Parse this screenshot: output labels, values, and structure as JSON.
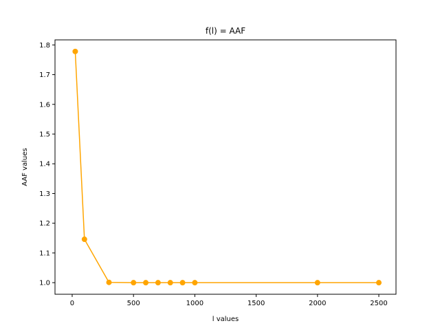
{
  "chart_data": {
    "type": "line",
    "title": "f(l) = AAF",
    "xlabel": "l values",
    "ylabel": "AAF values",
    "xlim": [
      -140,
      2640
    ],
    "ylim": [
      0.961,
      1.817
    ],
    "xticks": [
      0,
      500,
      1000,
      1500,
      2000,
      2500
    ],
    "yticks": [
      1.0,
      1.1,
      1.2,
      1.3,
      1.4,
      1.5,
      1.6,
      1.7,
      1.8
    ],
    "xtick_labels": [
      "0",
      "500",
      "1000",
      "1500",
      "2000",
      "2500"
    ],
    "ytick_labels": [
      "1.0",
      "1.1",
      "1.2",
      "1.3",
      "1.4",
      "1.5",
      "1.6",
      "1.7",
      "1.8"
    ],
    "grid": false,
    "series": [
      {
        "color": "#ffa500",
        "marker": "circle",
        "x": [
          25,
          100,
          300,
          500,
          600,
          700,
          800,
          900,
          1000,
          2000,
          2500
        ],
        "y": [
          1.778,
          1.146,
          1.001,
          1.0,
          1.0,
          1.0,
          1.0,
          1.0,
          1.0,
          1.0,
          1.0
        ]
      }
    ]
  }
}
